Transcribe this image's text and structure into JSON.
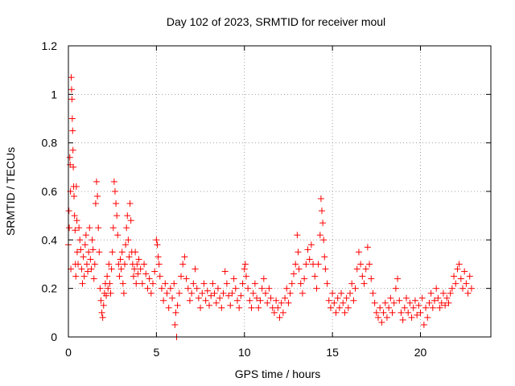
{
  "chart_data": {
    "type": "scatter",
    "title": "Day 102 of 2023, SRMTID for receiver moul",
    "xlabel": "GPS time / hours",
    "ylabel": "SRMTID / TECUs",
    "xlim": [
      0,
      24
    ],
    "ylim": [
      0,
      1.2
    ],
    "xticks": [
      0,
      5,
      10,
      15,
      20
    ],
    "yticks": [
      0,
      0.2,
      0.4,
      0.6,
      0.8,
      1,
      1.2
    ],
    "xtick_labels": [
      "0",
      "5",
      "10",
      "15",
      "20"
    ],
    "ytick_labels": [
      "0",
      "0.2",
      "0.4",
      "0.6",
      "0.8",
      "1",
      "1.2"
    ],
    "grid": true,
    "marker": "+",
    "color": "#ff0000",
    "series": [
      {
        "name": "SRMTID",
        "points": [
          [
            0.0,
            0.38
          ],
          [
            0.03,
            0.52
          ],
          [
            0.05,
            0.45
          ],
          [
            0.08,
            0.74
          ],
          [
            0.1,
            0.71
          ],
          [
            0.12,
            0.6
          ],
          [
            0.14,
            0.28
          ],
          [
            0.16,
            1.07
          ],
          [
            0.18,
            1.02
          ],
          [
            0.2,
            0.98
          ],
          [
            0.22,
            0.9
          ],
          [
            0.24,
            0.85
          ],
          [
            0.26,
            0.77
          ],
          [
            0.28,
            0.7
          ],
          [
            0.3,
            0.62
          ],
          [
            0.32,
            0.58
          ],
          [
            0.35,
            0.5
          ],
          [
            0.38,
            0.44
          ],
          [
            0.4,
            0.3
          ],
          [
            0.42,
            0.25
          ],
          [
            0.45,
            0.62
          ],
          [
            0.48,
            0.48
          ],
          [
            0.5,
            0.35
          ],
          [
            0.55,
            0.3
          ],
          [
            0.6,
            0.45
          ],
          [
            0.65,
            0.4
          ],
          [
            0.7,
            0.36
          ],
          [
            0.75,
            0.28
          ],
          [
            0.8,
            0.22
          ],
          [
            0.85,
            0.33
          ],
          [
            0.9,
            0.25
          ],
          [
            0.95,
            0.38
          ],
          [
            1.0,
            0.42
          ],
          [
            1.05,
            0.3
          ],
          [
            1.1,
            0.27
          ],
          [
            1.15,
            0.35
          ],
          [
            1.2,
            0.45
          ],
          [
            1.25,
            0.32
          ],
          [
            1.3,
            0.28
          ],
          [
            1.35,
            0.4
          ],
          [
            1.4,
            0.36
          ],
          [
            1.45,
            0.24
          ],
          [
            1.5,
            0.3
          ],
          [
            1.55,
            0.55
          ],
          [
            1.6,
            0.64
          ],
          [
            1.65,
            0.58
          ],
          [
            1.7,
            0.45
          ],
          [
            1.75,
            0.35
          ],
          [
            1.8,
            0.2
          ],
          [
            1.85,
            0.15
          ],
          [
            1.9,
            0.1
          ],
          [
            1.95,
            0.08
          ],
          [
            2.0,
            0.13
          ],
          [
            2.05,
            0.18
          ],
          [
            2.1,
            0.22
          ],
          [
            2.15,
            0.17
          ],
          [
            2.2,
            0.25
          ],
          [
            2.25,
            0.2
          ],
          [
            2.3,
            0.3
          ],
          [
            2.35,
            0.22
          ],
          [
            2.4,
            0.18
          ],
          [
            2.45,
            0.28
          ],
          [
            2.5,
            0.35
          ],
          [
            2.55,
            0.45
          ],
          [
            2.6,
            0.64
          ],
          [
            2.65,
            0.6
          ],
          [
            2.7,
            0.55
          ],
          [
            2.75,
            0.5
          ],
          [
            2.8,
            0.42
          ],
          [
            2.85,
            0.3
          ],
          [
            2.9,
            0.25
          ],
          [
            2.95,
            0.32
          ],
          [
            3.0,
            0.28
          ],
          [
            3.05,
            0.35
          ],
          [
            3.1,
            0.22
          ],
          [
            3.15,
            0.18
          ],
          [
            3.2,
            0.3
          ],
          [
            3.25,
            0.38
          ],
          [
            3.3,
            0.45
          ],
          [
            3.35,
            0.5
          ],
          [
            3.4,
            0.4
          ],
          [
            3.45,
            0.33
          ],
          [
            3.5,
            0.55
          ],
          [
            3.55,
            0.48
          ],
          [
            3.6,
            0.35
          ],
          [
            3.65,
            0.3
          ],
          [
            3.7,
            0.25
          ],
          [
            3.75,
            0.28
          ],
          [
            3.8,
            0.35
          ],
          [
            3.85,
            0.22
          ],
          [
            3.9,
            0.3
          ],
          [
            3.95,
            0.26
          ],
          [
            4.0,
            0.32
          ],
          [
            4.1,
            0.28
          ],
          [
            4.2,
            0.22
          ],
          [
            4.3,
            0.3
          ],
          [
            4.4,
            0.26
          ],
          [
            4.5,
            0.2
          ],
          [
            4.6,
            0.24
          ],
          [
            4.7,
            0.18
          ],
          [
            4.8,
            0.22
          ],
          [
            4.9,
            0.27
          ],
          [
            5.0,
            0.4
          ],
          [
            5.05,
            0.38
          ],
          [
            5.1,
            0.33
          ],
          [
            5.15,
            0.3
          ],
          [
            5.2,
            0.25
          ],
          [
            5.3,
            0.2
          ],
          [
            5.4,
            0.15
          ],
          [
            5.5,
            0.22
          ],
          [
            5.6,
            0.18
          ],
          [
            5.7,
            0.12
          ],
          [
            5.8,
            0.2
          ],
          [
            5.9,
            0.16
          ],
          [
            6.0,
            0.22
          ],
          [
            6.05,
            0.05
          ],
          [
            6.1,
            0.1
          ],
          [
            6.15,
            0.0
          ],
          [
            6.2,
            0.13
          ],
          [
            6.3,
            0.18
          ],
          [
            6.4,
            0.25
          ],
          [
            6.5,
            0.3
          ],
          [
            6.6,
            0.33
          ],
          [
            6.7,
            0.24
          ],
          [
            6.8,
            0.2
          ],
          [
            6.9,
            0.15
          ],
          [
            7.0,
            0.18
          ],
          [
            7.1,
            0.22
          ],
          [
            7.2,
            0.28
          ],
          [
            7.3,
            0.2
          ],
          [
            7.4,
            0.16
          ],
          [
            7.5,
            0.12
          ],
          [
            7.6,
            0.18
          ],
          [
            7.7,
            0.22
          ],
          [
            7.8,
            0.15
          ],
          [
            7.9,
            0.19
          ],
          [
            8.0,
            0.13
          ],
          [
            8.1,
            0.17
          ],
          [
            8.2,
            0.22
          ],
          [
            8.3,
            0.18
          ],
          [
            8.4,
            0.14
          ],
          [
            8.5,
            0.2
          ],
          [
            8.6,
            0.16
          ],
          [
            8.7,
            0.12
          ],
          [
            8.8,
            0.18
          ],
          [
            8.9,
            0.27
          ],
          [
            9.0,
            0.22
          ],
          [
            9.1,
            0.17
          ],
          [
            9.2,
            0.13
          ],
          [
            9.3,
            0.18
          ],
          [
            9.4,
            0.24
          ],
          [
            9.5,
            0.2
          ],
          [
            9.6,
            0.15
          ],
          [
            9.7,
            0.12
          ],
          [
            9.8,
            0.17
          ],
          [
            9.9,
            0.22
          ],
          [
            10.0,
            0.28
          ],
          [
            10.05,
            0.3
          ],
          [
            10.1,
            0.25
          ],
          [
            10.2,
            0.2
          ],
          [
            10.3,
            0.15
          ],
          [
            10.4,
            0.12
          ],
          [
            10.5,
            0.18
          ],
          [
            10.6,
            0.22
          ],
          [
            10.7,
            0.16
          ],
          [
            10.8,
            0.12
          ],
          [
            10.9,
            0.15
          ],
          [
            11.0,
            0.2
          ],
          [
            11.1,
            0.24
          ],
          [
            11.2,
            0.18
          ],
          [
            11.3,
            0.14
          ],
          [
            11.4,
            0.2
          ],
          [
            11.5,
            0.16
          ],
          [
            11.6,
            0.12
          ],
          [
            11.7,
            0.1
          ],
          [
            11.8,
            0.15
          ],
          [
            11.9,
            0.12
          ],
          [
            12.0,
            0.08
          ],
          [
            12.1,
            0.14
          ],
          [
            12.2,
            0.1
          ],
          [
            12.3,
            0.16
          ],
          [
            12.4,
            0.2
          ],
          [
            12.5,
            0.14
          ],
          [
            12.6,
            0.18
          ],
          [
            12.7,
            0.22
          ],
          [
            12.8,
            0.26
          ],
          [
            12.9,
            0.3
          ],
          [
            13.0,
            0.42
          ],
          [
            13.05,
            0.35
          ],
          [
            13.1,
            0.28
          ],
          [
            13.2,
            0.22
          ],
          [
            13.3,
            0.18
          ],
          [
            13.4,
            0.24
          ],
          [
            13.5,
            0.3
          ],
          [
            13.6,
            0.36
          ],
          [
            13.7,
            0.32
          ],
          [
            13.8,
            0.38
          ],
          [
            13.9,
            0.3
          ],
          [
            14.0,
            0.25
          ],
          [
            14.1,
            0.2
          ],
          [
            14.2,
            0.3
          ],
          [
            14.3,
            0.42
          ],
          [
            14.35,
            0.57
          ],
          [
            14.4,
            0.52
          ],
          [
            14.45,
            0.47
          ],
          [
            14.5,
            0.4
          ],
          [
            14.55,
            0.33
          ],
          [
            14.6,
            0.28
          ],
          [
            14.7,
            0.22
          ],
          [
            14.8,
            0.15
          ],
          [
            14.9,
            0.12
          ],
          [
            15.0,
            0.18
          ],
          [
            15.1,
            0.14
          ],
          [
            15.2,
            0.1
          ],
          [
            15.3,
            0.16
          ],
          [
            15.4,
            0.12
          ],
          [
            15.5,
            0.18
          ],
          [
            15.6,
            0.14
          ],
          [
            15.7,
            0.1
          ],
          [
            15.8,
            0.16
          ],
          [
            15.9,
            0.12
          ],
          [
            16.0,
            0.18
          ],
          [
            16.1,
            0.22
          ],
          [
            16.2,
            0.15
          ],
          [
            16.3,
            0.2
          ],
          [
            16.4,
            0.28
          ],
          [
            16.5,
            0.35
          ],
          [
            16.6,
            0.3
          ],
          [
            16.7,
            0.25
          ],
          [
            16.8,
            0.22
          ],
          [
            16.9,
            0.28
          ],
          [
            17.0,
            0.37
          ],
          [
            17.1,
            0.3
          ],
          [
            17.2,
            0.24
          ],
          [
            17.3,
            0.18
          ],
          [
            17.4,
            0.14
          ],
          [
            17.5,
            0.1
          ],
          [
            17.6,
            0.08
          ],
          [
            17.7,
            0.12
          ],
          [
            17.8,
            0.06
          ],
          [
            17.9,
            0.1
          ],
          [
            18.0,
            0.14
          ],
          [
            18.1,
            0.08
          ],
          [
            18.2,
            0.12
          ],
          [
            18.3,
            0.16
          ],
          [
            18.4,
            0.1
          ],
          [
            18.5,
            0.14
          ],
          [
            18.6,
            0.2
          ],
          [
            18.7,
            0.24
          ],
          [
            18.8,
            0.15
          ],
          [
            18.9,
            0.1
          ],
          [
            19.0,
            0.07
          ],
          [
            19.1,
            0.12
          ],
          [
            19.2,
            0.16
          ],
          [
            19.3,
            0.1
          ],
          [
            19.4,
            0.14
          ],
          [
            19.5,
            0.08
          ],
          [
            19.6,
            0.12
          ],
          [
            19.7,
            0.15
          ],
          [
            19.8,
            0.09
          ],
          [
            19.9,
            0.13
          ],
          [
            20.0,
            0.1
          ],
          [
            20.1,
            0.16
          ],
          [
            20.2,
            0.05
          ],
          [
            20.3,
            0.12
          ],
          [
            20.4,
            0.08
          ],
          [
            20.5,
            0.14
          ],
          [
            20.6,
            0.18
          ],
          [
            20.7,
            0.12
          ],
          [
            20.8,
            0.15
          ],
          [
            20.9,
            0.2
          ],
          [
            21.0,
            0.16
          ],
          [
            21.1,
            0.12
          ],
          [
            21.2,
            0.14
          ],
          [
            21.3,
            0.18
          ],
          [
            21.4,
            0.13
          ],
          [
            21.5,
            0.16
          ],
          [
            21.6,
            0.14
          ],
          [
            21.7,
            0.18
          ],
          [
            21.8,
            0.2
          ],
          [
            21.9,
            0.25
          ],
          [
            22.0,
            0.22
          ],
          [
            22.1,
            0.28
          ],
          [
            22.2,
            0.3
          ],
          [
            22.3,
            0.24
          ],
          [
            22.4,
            0.2
          ],
          [
            22.5,
            0.27
          ],
          [
            22.6,
            0.22
          ],
          [
            22.7,
            0.18
          ],
          [
            22.8,
            0.25
          ],
          [
            22.9,
            0.2
          ]
        ]
      }
    ]
  }
}
